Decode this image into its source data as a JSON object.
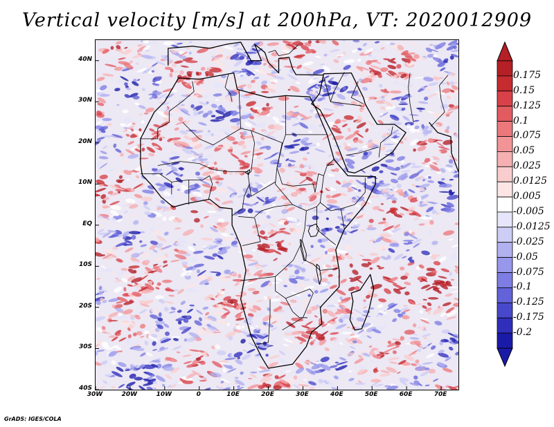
{
  "title": "Vertical velocity [m/s] at 200hPa, VT: 2020012909",
  "credit": "GrADS: IGES/COLA",
  "map": {
    "variable": "Vertical velocity",
    "level": "200hPa",
    "valid_time": "2020012909",
    "lon_range": [
      -30,
      75
    ],
    "lat_range": [
      -40,
      45
    ],
    "lat_ticks": [
      {
        "value": 40,
        "label": "40N"
      },
      {
        "value": 30,
        "label": "30N"
      },
      {
        "value": 20,
        "label": "20N"
      },
      {
        "value": 10,
        "label": "10N"
      },
      {
        "value": 0,
        "label": "EQ"
      },
      {
        "value": -10,
        "label": "10S"
      },
      {
        "value": -20,
        "label": "20S"
      },
      {
        "value": -30,
        "label": "30S"
      },
      {
        "value": -40,
        "label": "40S"
      }
    ],
    "lon_ticks": [
      {
        "value": -30,
        "label": "30W"
      },
      {
        "value": -20,
        "label": "20W"
      },
      {
        "value": -10,
        "label": "10W"
      },
      {
        "value": 0,
        "label": "0"
      },
      {
        "value": 10,
        "label": "10E"
      },
      {
        "value": 20,
        "label": "20E"
      },
      {
        "value": 30,
        "label": "30E"
      },
      {
        "value": 40,
        "label": "40E"
      },
      {
        "value": 50,
        "label": "50E"
      },
      {
        "value": 60,
        "label": "60E"
      },
      {
        "value": 70,
        "label": "70E"
      }
    ],
    "africa_outline": [
      [
        -17,
        15
      ],
      [
        -17,
        21
      ],
      [
        -13,
        27.5
      ],
      [
        -10,
        30
      ],
      [
        -6,
        35.8
      ],
      [
        0,
        35.5
      ],
      [
        10,
        37
      ],
      [
        11,
        33
      ],
      [
        20,
        31
      ],
      [
        25,
        31.5
      ],
      [
        32,
        31.2
      ],
      [
        34,
        28
      ],
      [
        37,
        22
      ],
      [
        39,
        16
      ],
      [
        43,
        12
      ],
      [
        51,
        11.8
      ],
      [
        51,
        10
      ],
      [
        48,
        5
      ],
      [
        42,
        -1
      ],
      [
        39.5,
        -6
      ],
      [
        40.5,
        -11
      ],
      [
        40.5,
        -15
      ],
      [
        35,
        -20
      ],
      [
        35.5,
        -24
      ],
      [
        32.5,
        -26
      ],
      [
        31,
        -29.5
      ],
      [
        27,
        -33.8
      ],
      [
        20,
        -34.8
      ],
      [
        18,
        -32
      ],
      [
        15,
        -27
      ],
      [
        12,
        -18
      ],
      [
        13.5,
        -11
      ],
      [
        12,
        -5
      ],
      [
        9.5,
        0
      ],
      [
        9.5,
        4
      ],
      [
        6,
        4.3
      ],
      [
        3,
        6.3
      ],
      [
        -4,
        5.2
      ],
      [
        -7.5,
        4.4
      ],
      [
        -11,
        6.8
      ],
      [
        -13.5,
        9.5
      ],
      [
        -16.5,
        12.2
      ]
    ],
    "arabia_outline": [
      [
        32.5,
        29.5
      ],
      [
        35,
        28
      ],
      [
        39,
        21.5
      ],
      [
        43,
        13
      ],
      [
        45,
        12.7
      ],
      [
        52,
        15.5
      ],
      [
        56,
        17.8
      ],
      [
        59.8,
        22.5
      ],
      [
        56.5,
        24.5
      ],
      [
        51.5,
        24.5
      ],
      [
        50,
        26.5
      ],
      [
        48,
        29.5
      ],
      [
        47.5,
        31
      ],
      [
        44,
        37
      ],
      [
        36,
        36.8
      ],
      [
        34.8,
        32
      ]
    ],
    "india_outline": [
      [
        66.5,
        25
      ],
      [
        69,
        22.5
      ],
      [
        72.8,
        21.5
      ],
      [
        73,
        17.5
      ],
      [
        75,
        13
      ]
    ],
    "madagascar_outline": [
      [
        44,
        -16.5
      ],
      [
        46.5,
        -15.8
      ],
      [
        49.5,
        -12
      ],
      [
        50.5,
        -15.5
      ],
      [
        49,
        -21
      ],
      [
        47,
        -25.2
      ],
      [
        45,
        -25.5
      ],
      [
        43.6,
        -23
      ],
      [
        44.5,
        -18.5
      ]
    ],
    "europe_coast": [
      [
        -9,
        38.8
      ],
      [
        -9,
        43
      ],
      [
        -2,
        43.5
      ],
      [
        3,
        43
      ],
      [
        8,
        44
      ],
      [
        12,
        44.5
      ],
      [
        15,
        40
      ],
      [
        18,
        40
      ],
      [
        16,
        44
      ],
      [
        19,
        42
      ],
      [
        20,
        39.5
      ],
      [
        23,
        37
      ],
      [
        23,
        40.5
      ],
      [
        26,
        40.8
      ],
      [
        27,
        38
      ],
      [
        28,
        36.6
      ],
      [
        36,
        36.5
      ]
    ],
    "borders": [
      [
        [
          -8.7,
          27.7
        ],
        [
          -8.7,
          25
        ],
        [
          -12,
          23.5
        ],
        [
          -12,
          21
        ],
        [
          -17,
          21
        ]
      ],
      [
        [
          -8.7,
          27.7
        ],
        [
          -5,
          30
        ],
        [
          -1.5,
          32.5
        ],
        [
          -2,
          35
        ]
      ],
      [
        [
          9.5,
          30
        ],
        [
          9,
          32
        ],
        [
          7.5,
          33.5
        ],
        [
          8.5,
          36.8
        ]
      ],
      [
        [
          -4.8,
          25
        ],
        [
          0,
          21
        ],
        [
          4,
          19.5
        ],
        [
          12,
          23.5
        ],
        [
          15,
          23
        ],
        [
          24,
          20
        ],
        [
          24,
          19.5
        ]
      ],
      [
        [
          25,
          31.5
        ],
        [
          25,
          22
        ],
        [
          31.5,
          22
        ],
        [
          36.9,
          22
        ]
      ],
      [
        [
          12,
          23.5
        ],
        [
          11.5,
          33
        ]
      ],
      [
        [
          15,
          23
        ],
        [
          16,
          20
        ],
        [
          15,
          13
        ],
        [
          14,
          12.5
        ]
      ],
      [
        [
          24,
          20
        ],
        [
          22.5,
          14
        ],
        [
          22,
          10
        ],
        [
          27,
          5
        ]
      ],
      [
        [
          -12,
          14.5
        ],
        [
          -5.5,
          15.5
        ],
        [
          0,
          15
        ],
        [
          4,
          13.5
        ],
        [
          9,
          13
        ],
        [
          14,
          13
        ]
      ],
      [
        [
          -17,
          12.5
        ],
        [
          -11.5,
          12.5
        ],
        [
          -8,
          10.5
        ],
        [
          -8,
          7.5
        ]
      ],
      [
        [
          -3,
          5
        ],
        [
          -3,
          11
        ],
        [
          1,
          11
        ],
        [
          3,
          12
        ],
        [
          3.8,
          10
        ],
        [
          2.7,
          6.3
        ]
      ],
      [
        [
          -8,
          10.5
        ],
        [
          -3,
          11
        ]
      ],
      [
        [
          14,
          13
        ],
        [
          14.5,
          10
        ],
        [
          15,
          7
        ],
        [
          16,
          7.5
        ],
        [
          22,
          10.5
        ]
      ],
      [
        [
          14.5,
          10
        ],
        [
          13,
          7
        ],
        [
          12.5,
          4
        ],
        [
          9.5,
          2.3
        ]
      ],
      [
        [
          16,
          2
        ],
        [
          18,
          3.5
        ],
        [
          22,
          4.5
        ],
        [
          27,
          5
        ],
        [
          31,
          3.5
        ],
        [
          34,
          4.5
        ],
        [
          35,
          5.5
        ]
      ],
      [
        [
          11.3,
          2.1
        ],
        [
          16,
          1.8
        ],
        [
          17.7,
          -4
        ],
        [
          12.5,
          -5
        ]
      ],
      [
        [
          31,
          3.5
        ],
        [
          30.5,
          -1
        ],
        [
          29.5,
          -4.5
        ],
        [
          30.5,
          -8.5
        ],
        [
          33,
          -9.5
        ]
      ],
      [
        [
          29.5,
          -4.5
        ],
        [
          27.2,
          -8.5
        ],
        [
          24,
          -11
        ],
        [
          22,
          -12.5
        ],
        [
          22,
          -16
        ]
      ],
      [
        [
          22,
          -12.5
        ],
        [
          12,
          -13.5
        ]
      ],
      [
        [
          22,
          -16
        ],
        [
          25,
          -17.8
        ],
        [
          32,
          -15.5
        ],
        [
          33,
          -16.5
        ],
        [
          30,
          -22.5
        ]
      ],
      [
        [
          20.5,
          -18
        ],
        [
          20.5,
          -22
        ],
        [
          20,
          -28.5
        ],
        [
          17,
          -29
        ]
      ],
      [
        [
          25,
          -17.8
        ],
        [
          27,
          -21
        ],
        [
          29,
          -22.5
        ],
        [
          31.3,
          -22.5
        ]
      ],
      [
        [
          24,
          -25.5
        ],
        [
          27,
          -24
        ],
        [
          30,
          -22.5
        ]
      ],
      [
        [
          33,
          -9.5
        ],
        [
          35,
          -11
        ],
        [
          40,
          -10.5
        ]
      ],
      [
        [
          34,
          4.5
        ],
        [
          34,
          -1
        ],
        [
          37.5,
          -3.5
        ],
        [
          39.5,
          -4.8
        ]
      ],
      [
        [
          35,
          5.5
        ],
        [
          38,
          3.5
        ],
        [
          41,
          4
        ],
        [
          42,
          -1
        ]
      ],
      [
        [
          35,
          5.5
        ],
        [
          36,
          12
        ],
        [
          37,
          14.5
        ],
        [
          39,
          14.8
        ]
      ],
      [
        [
          37,
          14.5
        ],
        [
          39,
          16
        ]
      ],
      [
        [
          41,
          4
        ],
        [
          45,
          5
        ],
        [
          48,
          8
        ],
        [
          48,
          11.5
        ]
      ],
      [
        [
          25,
          22
        ],
        [
          24,
          19.5
        ],
        [
          22.5,
          14
        ],
        [
          24,
          10
        ],
        [
          27,
          9.5
        ]
      ],
      [
        [
          27,
          9.5
        ],
        [
          33,
          10
        ],
        [
          33.5,
          8
        ],
        [
          34.5,
          12.5
        ],
        [
          36,
          12
        ]
      ],
      [
        [
          36,
          36
        ],
        [
          38,
          30
        ],
        [
          39,
          32.5
        ],
        [
          42,
          37.2
        ]
      ],
      [
        [
          46,
          35
        ],
        [
          44,
          31
        ],
        [
          47.5,
          29.5
        ]
      ],
      [
        [
          38,
          30
        ],
        [
          47,
          29
        ]
      ],
      [
        [
          52,
          16.5
        ],
        [
          52.5,
          20
        ],
        [
          55.5,
          22
        ],
        [
          56,
          24
        ]
      ],
      [
        [
          42.5,
          17
        ],
        [
          46,
          17.5
        ],
        [
          52,
          19
        ]
      ],
      [
        [
          20,
          42
        ],
        [
          22,
          42.5
        ],
        [
          23,
          41.2
        ],
        [
          26,
          41.7
        ]
      ],
      [
        [
          26,
          41.7
        ],
        [
          28.5,
          43.7
        ]
      ],
      [
        [
          62,
          25
        ],
        [
          61,
          29.5
        ],
        [
          60.5,
          33.5
        ],
        [
          61,
          37
        ]
      ],
      [
        [
          67,
          24
        ],
        [
          71,
          27.5
        ],
        [
          70,
          30.5
        ],
        [
          69.5,
          34
        ],
        [
          72,
          36.5
        ]
      ]
    ],
    "lakes": [
      {
        "name": "Lake Victoria",
        "points": [
          [
            32,
            -0.3
          ],
          [
            33.8,
            0.3
          ],
          [
            34.7,
            -1
          ],
          [
            33.8,
            -2.6
          ],
          [
            32.3,
            -2.8
          ],
          [
            31.6,
            -1.5
          ]
        ]
      },
      {
        "name": "Lake Tanganyika",
        "points": [
          [
            29.2,
            -3.5
          ],
          [
            29.8,
            -3.8
          ],
          [
            31,
            -7
          ],
          [
            30.8,
            -8.6
          ],
          [
            30.3,
            -8.6
          ],
          [
            29.5,
            -6
          ]
        ]
      },
      {
        "name": "Lake Malawi",
        "points": [
          [
            34,
            -9.5
          ],
          [
            34.7,
            -10
          ],
          [
            35.3,
            -13
          ],
          [
            34.8,
            -14.4
          ],
          [
            34.3,
            -12.5
          ],
          [
            33.9,
            -10.8
          ]
        ]
      },
      {
        "name": "Lake Chad",
        "points": [
          [
            13.3,
            12.8
          ],
          [
            14.6,
            13.5
          ],
          [
            14.3,
            12.3
          ]
        ]
      }
    ]
  },
  "colorbar": {
    "labels": [
      "0.175",
      "0.15",
      "0.125",
      "0.1",
      "0.075",
      "0.05",
      "0.025",
      "0.0125",
      "0.005",
      "-0.005",
      "-0.0125",
      "-0.025",
      "-0.05",
      "-0.075",
      "-0.1",
      "-0.125",
      "-0.175",
      "-0.2"
    ],
    "colors": [
      "#b51f26",
      "#c62b2f",
      "#d9414a",
      "#e25b61",
      "#ec787c",
      "#f29497",
      "#f6b0b2",
      "#f9cdcd",
      "#fde5e5",
      "#ffffff",
      "#e6e6fa",
      "#cdcdf6",
      "#b1b1f0",
      "#9797ec",
      "#7d7de3",
      "#6262d9",
      "#4848cc",
      "#2f2fbc",
      "#1a1aa8"
    ],
    "top_cap_color": "#b51f26",
    "bottom_cap_color": "#1a1aa8"
  }
}
